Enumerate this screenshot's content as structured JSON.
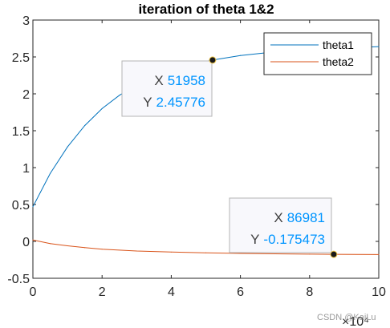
{
  "chart_data": {
    "type": "line",
    "title": "iteration of theta 1&2",
    "xlabel": "",
    "ylabel": "",
    "xlim": [
      0,
      100000
    ],
    "ylim": [
      -0.5,
      3
    ],
    "x_exponent_label": "×10⁴",
    "x_ticks": [
      {
        "value": 0,
        "label": "0"
      },
      {
        "value": 20000,
        "label": "2"
      },
      {
        "value": 40000,
        "label": "4"
      },
      {
        "value": 60000,
        "label": "6"
      },
      {
        "value": 80000,
        "label": "8"
      },
      {
        "value": 100000,
        "label": "10"
      }
    ],
    "y_ticks": [
      {
        "value": -0.5,
        "label": "-0.5"
      },
      {
        "value": 0,
        "label": "0"
      },
      {
        "value": 0.5,
        "label": "0.5"
      },
      {
        "value": 1,
        "label": "1"
      },
      {
        "value": 1.5,
        "label": "1.5"
      },
      {
        "value": 2,
        "label": "2"
      },
      {
        "value": 2.5,
        "label": "2.5"
      },
      {
        "value": 3,
        "label": "3"
      }
    ],
    "grid": false,
    "legend_placement": "top-right",
    "series": [
      {
        "name": "theta1",
        "color": "#0072bd",
        "x": [
          0,
          5000,
          10000,
          15000,
          20000,
          25000,
          30000,
          35000,
          40000,
          45000,
          51958,
          60000,
          70000,
          80000,
          90000,
          100000
        ],
        "y": [
          0.47,
          0.92,
          1.28,
          1.57,
          1.8,
          1.98,
          2.12,
          2.23,
          2.32,
          2.39,
          2.45776,
          2.52,
          2.57,
          2.6,
          2.62,
          2.64
        ]
      },
      {
        "name": "theta2",
        "color": "#d95319",
        "x": [
          0,
          5000,
          10000,
          15000,
          20000,
          30000,
          40000,
          50000,
          60000,
          70000,
          80000,
          86981,
          100000
        ],
        "y": [
          0.02,
          -0.03,
          -0.06,
          -0.085,
          -0.105,
          -0.13,
          -0.145,
          -0.155,
          -0.163,
          -0.169,
          -0.173,
          -0.175473,
          -0.178
        ]
      }
    ],
    "datatips": [
      {
        "x_key": "X",
        "x_value": "51958",
        "y_key": "Y",
        "y_value": "2.45776",
        "x": 51958,
        "y": 2.45776
      },
      {
        "x_key": "X",
        "x_value": "86981",
        "y_key": "Y",
        "y_value": "-0.175473",
        "x": 86981,
        "y": -0.175473
      }
    ]
  },
  "watermark": "CSDN @KaiLu"
}
